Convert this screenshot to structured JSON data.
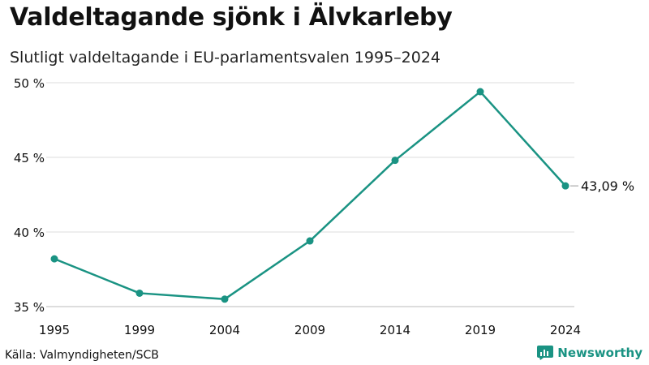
{
  "title": "Valdeltagande sjönk i Älvkarleby",
  "subtitle": "Slutligt valdeltagande i EU-parlamentsvalen 1995–2024",
  "source": "Källa: Valmyndigheten/SCB",
  "brand": "Newsworthy",
  "colors": {
    "line": "#1a9383",
    "grid": "#dddddd",
    "brand": "#1a9383",
    "text": "#111111"
  },
  "chart_data": {
    "type": "line",
    "x": [
      "1995",
      "1999",
      "2004",
      "2009",
      "2014",
      "2019",
      "2024"
    ],
    "y": [
      38.2,
      35.9,
      35.5,
      39.4,
      44.8,
      49.4,
      43.09
    ],
    "yticks": [
      35,
      40,
      45,
      50
    ],
    "ytick_labels": [
      "35 %",
      "40 %",
      "45 %",
      "50 %"
    ],
    "ylim": [
      35,
      50
    ],
    "grid": true,
    "end_label": "43,09 %",
    "title": "Valdeltagande sjönk i Älvkarleby",
    "subtitle": "Slutligt valdeltagande i EU-parlamentsvalen 1995–2024",
    "xlabel": "",
    "ylabel": ""
  }
}
